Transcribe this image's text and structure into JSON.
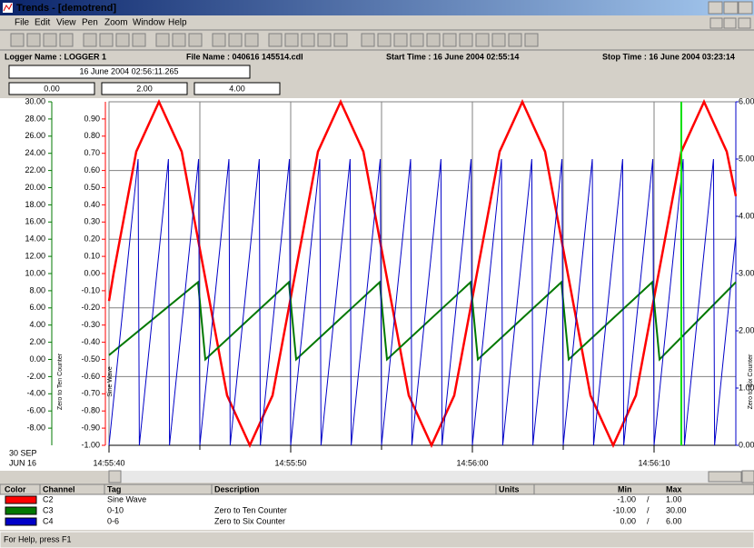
{
  "window": {
    "title": "Trends - [demotrend]",
    "menu": [
      "File",
      "Edit",
      "View",
      "Pen",
      "Zoom",
      "Window",
      "Help"
    ]
  },
  "info": {
    "logger": "Logger Name : LOGGER 1",
    "file": "File Name : 040616 145514.cdl",
    "start": "Start Time : 16 June 2004 02:55:14",
    "stop": "Stop Time : 16 June 2004 03:23:14"
  },
  "cursor_time": "16 June 2004 02:56:11.265",
  "cursor_values": [
    "0.00",
    "2.00",
    "4.00"
  ],
  "chart_data": {
    "type": "line",
    "xlim": [
      40,
      74.5
    ],
    "xticks": [
      {
        "value": 40,
        "label": "14:55:40"
      },
      {
        "value": 50,
        "label": "14:55:50"
      },
      {
        "value": 60,
        "label": "14:56:00"
      },
      {
        "value": 70,
        "label": "14:56:10"
      }
    ],
    "x_minor_grid": [
      45,
      55,
      65
    ],
    "corner_labels": [
      "30 SEP",
      "JUN 16"
    ],
    "cursor_x": 71.5,
    "cursor_color": "#00e000",
    "ylim": [
      -10,
      30
    ],
    "yticks": [
      {
        "value": 30,
        "label": "30.00"
      },
      {
        "value": 28,
        "label": "28.00"
      },
      {
        "value": 26,
        "label": "26.00"
      },
      {
        "value": 24,
        "label": "24.00"
      },
      {
        "value": 22,
        "label": "22.00"
      },
      {
        "value": 20,
        "label": "20.00"
      },
      {
        "value": 18,
        "label": "18.00"
      },
      {
        "value": 16,
        "label": "16.00"
      },
      {
        "value": 14,
        "label": "14.00"
      },
      {
        "value": 12,
        "label": "12.00"
      },
      {
        "value": 10,
        "label": "10.00"
      },
      {
        "value": 8,
        "label": "8.00"
      },
      {
        "value": 6,
        "label": "6.00"
      },
      {
        "value": 4,
        "label": "4.00"
      },
      {
        "value": 2,
        "label": "2.00"
      },
      {
        "value": 0,
        "label": "0.00"
      },
      {
        "value": -2,
        "label": "-2.00"
      },
      {
        "value": -4,
        "label": "-4.00"
      },
      {
        "value": -6,
        "label": "-6.00"
      },
      {
        "value": -8,
        "label": "-8.00"
      }
    ],
    "y3lim": [
      -1,
      1
    ],
    "y3ticks": [
      {
        "value": 0.9,
        "label": "0.90"
      },
      {
        "value": 0.8,
        "label": "0.80"
      },
      {
        "value": 0.7,
        "label": "0.70"
      },
      {
        "value": 0.6,
        "label": "0.60"
      },
      {
        "value": 0.5,
        "label": "0.50"
      },
      {
        "value": 0.4,
        "label": "0.40"
      },
      {
        "value": 0.3,
        "label": "0.30"
      },
      {
        "value": 0.2,
        "label": "0.20"
      },
      {
        "value": 0.1,
        "label": "0.10"
      },
      {
        "value": 0,
        "label": "0.00"
      },
      {
        "value": -0.1,
        "label": "-0.10"
      },
      {
        "value": -0.2,
        "label": "-0.20"
      },
      {
        "value": -0.3,
        "label": "-0.30"
      },
      {
        "value": -0.4,
        "label": "-0.40"
      },
      {
        "value": -0.5,
        "label": "-0.50"
      },
      {
        "value": -0.6,
        "label": "-0.60"
      },
      {
        "value": -0.7,
        "label": "-0.70"
      },
      {
        "value": -0.8,
        "label": "-0.80"
      },
      {
        "value": -0.9,
        "label": "-0.90"
      },
      {
        "value": -1,
        "label": "-1.00"
      }
    ],
    "y3grid": [
      0.6,
      0.2,
      -0.2,
      -0.6
    ],
    "y2lim": [
      0,
      6
    ],
    "y2ticks": [
      {
        "value": 6,
        "label": "6.00"
      },
      {
        "value": 5,
        "label": "5.00"
      },
      {
        "value": 4,
        "label": "4.00"
      },
      {
        "value": 3,
        "label": "3.00"
      },
      {
        "value": 2,
        "label": "2.00"
      },
      {
        "value": 1,
        "label": "1.00"
      },
      {
        "value": 0,
        "label": "0.00"
      }
    ],
    "series": [
      {
        "name": "Sine Wave",
        "color": "#ff0000",
        "axis": "y3",
        "x": [
          40,
          40.25,
          41.5,
          42.75,
          44,
          45.25,
          46.5,
          47.75,
          49,
          50.25,
          51.5,
          52.75,
          54,
          55.25,
          56.5,
          57.75,
          59,
          60.25,
          61.5,
          62.75,
          64,
          65.25,
          66.5,
          67.75,
          69,
          70.25,
          71.5,
          72.75,
          74,
          74.5
        ],
        "values": [
          -0.16,
          0,
          0.71,
          1,
          0.71,
          0,
          -0.71,
          -1,
          -0.71,
          0,
          0.71,
          1,
          0.71,
          0,
          -0.71,
          -1,
          -0.71,
          0,
          0.71,
          1,
          0.71,
          0,
          -0.71,
          -1,
          -0.71,
          0,
          0.71,
          1,
          0.71,
          0.45
        ]
      },
      {
        "name": "Zero to Ten Counter",
        "color": "#007800",
        "axis": "y",
        "x": [
          40,
          44.9,
          45.3,
          49.9,
          50.3,
          54.9,
          55.3,
          59.9,
          60.3,
          64.9,
          65.3,
          69.9,
          70.3,
          74.5
        ],
        "values": [
          0.5,
          9,
          0,
          9,
          0,
          9,
          0,
          9,
          0,
          9,
          0,
          9,
          0,
          9
        ]
      },
      {
        "name": "Zero to Six Counter",
        "color": "#0000c8",
        "axis": "y2",
        "x": [
          40,
          41.6,
          41.67,
          43.27,
          43.33,
          44.93,
          45,
          46.6,
          46.67,
          48.27,
          48.33,
          49.93,
          50,
          51.6,
          51.67,
          53.27,
          53.33,
          54.93,
          55,
          56.6,
          56.67,
          58.27,
          58.33,
          59.93,
          60,
          61.6,
          61.67,
          63.27,
          63.33,
          64.93,
          65,
          66.6,
          66.67,
          68.27,
          68.33,
          69.93,
          70,
          71.6,
          71.67,
          73.27,
          73.33,
          74.5
        ],
        "values": [
          0,
          5,
          0,
          5,
          0,
          5,
          0,
          5,
          0,
          5,
          0,
          5,
          0,
          5,
          0,
          5,
          0,
          5,
          0,
          5,
          0,
          5,
          0,
          5,
          0,
          5,
          0,
          5,
          0,
          5,
          0,
          5,
          0,
          5,
          0,
          5,
          0,
          5,
          0,
          5,
          0,
          3.66
        ]
      }
    ]
  },
  "legend_table": {
    "headers": [
      "Color",
      "Channel",
      "Tag",
      "Description",
      "Units",
      "Min",
      "Max"
    ],
    "rows": [
      {
        "channel": "C2",
        "tag": "Sine Wave",
        "min": "-1.00",
        "sep": "/",
        "max": "1.00"
      },
      {
        "channel": "C3",
        "tag": "0-10",
        "description": "Zero to Ten Counter",
        "min": "-10.00",
        "sep": "/",
        "max": "30.00"
      },
      {
        "channel": "C4",
        "tag": "0-6",
        "description": "Zero to Six Counter",
        "min": "0.00",
        "sep": "/",
        "max": "6.00"
      }
    ]
  },
  "status": "For Help, press F1"
}
